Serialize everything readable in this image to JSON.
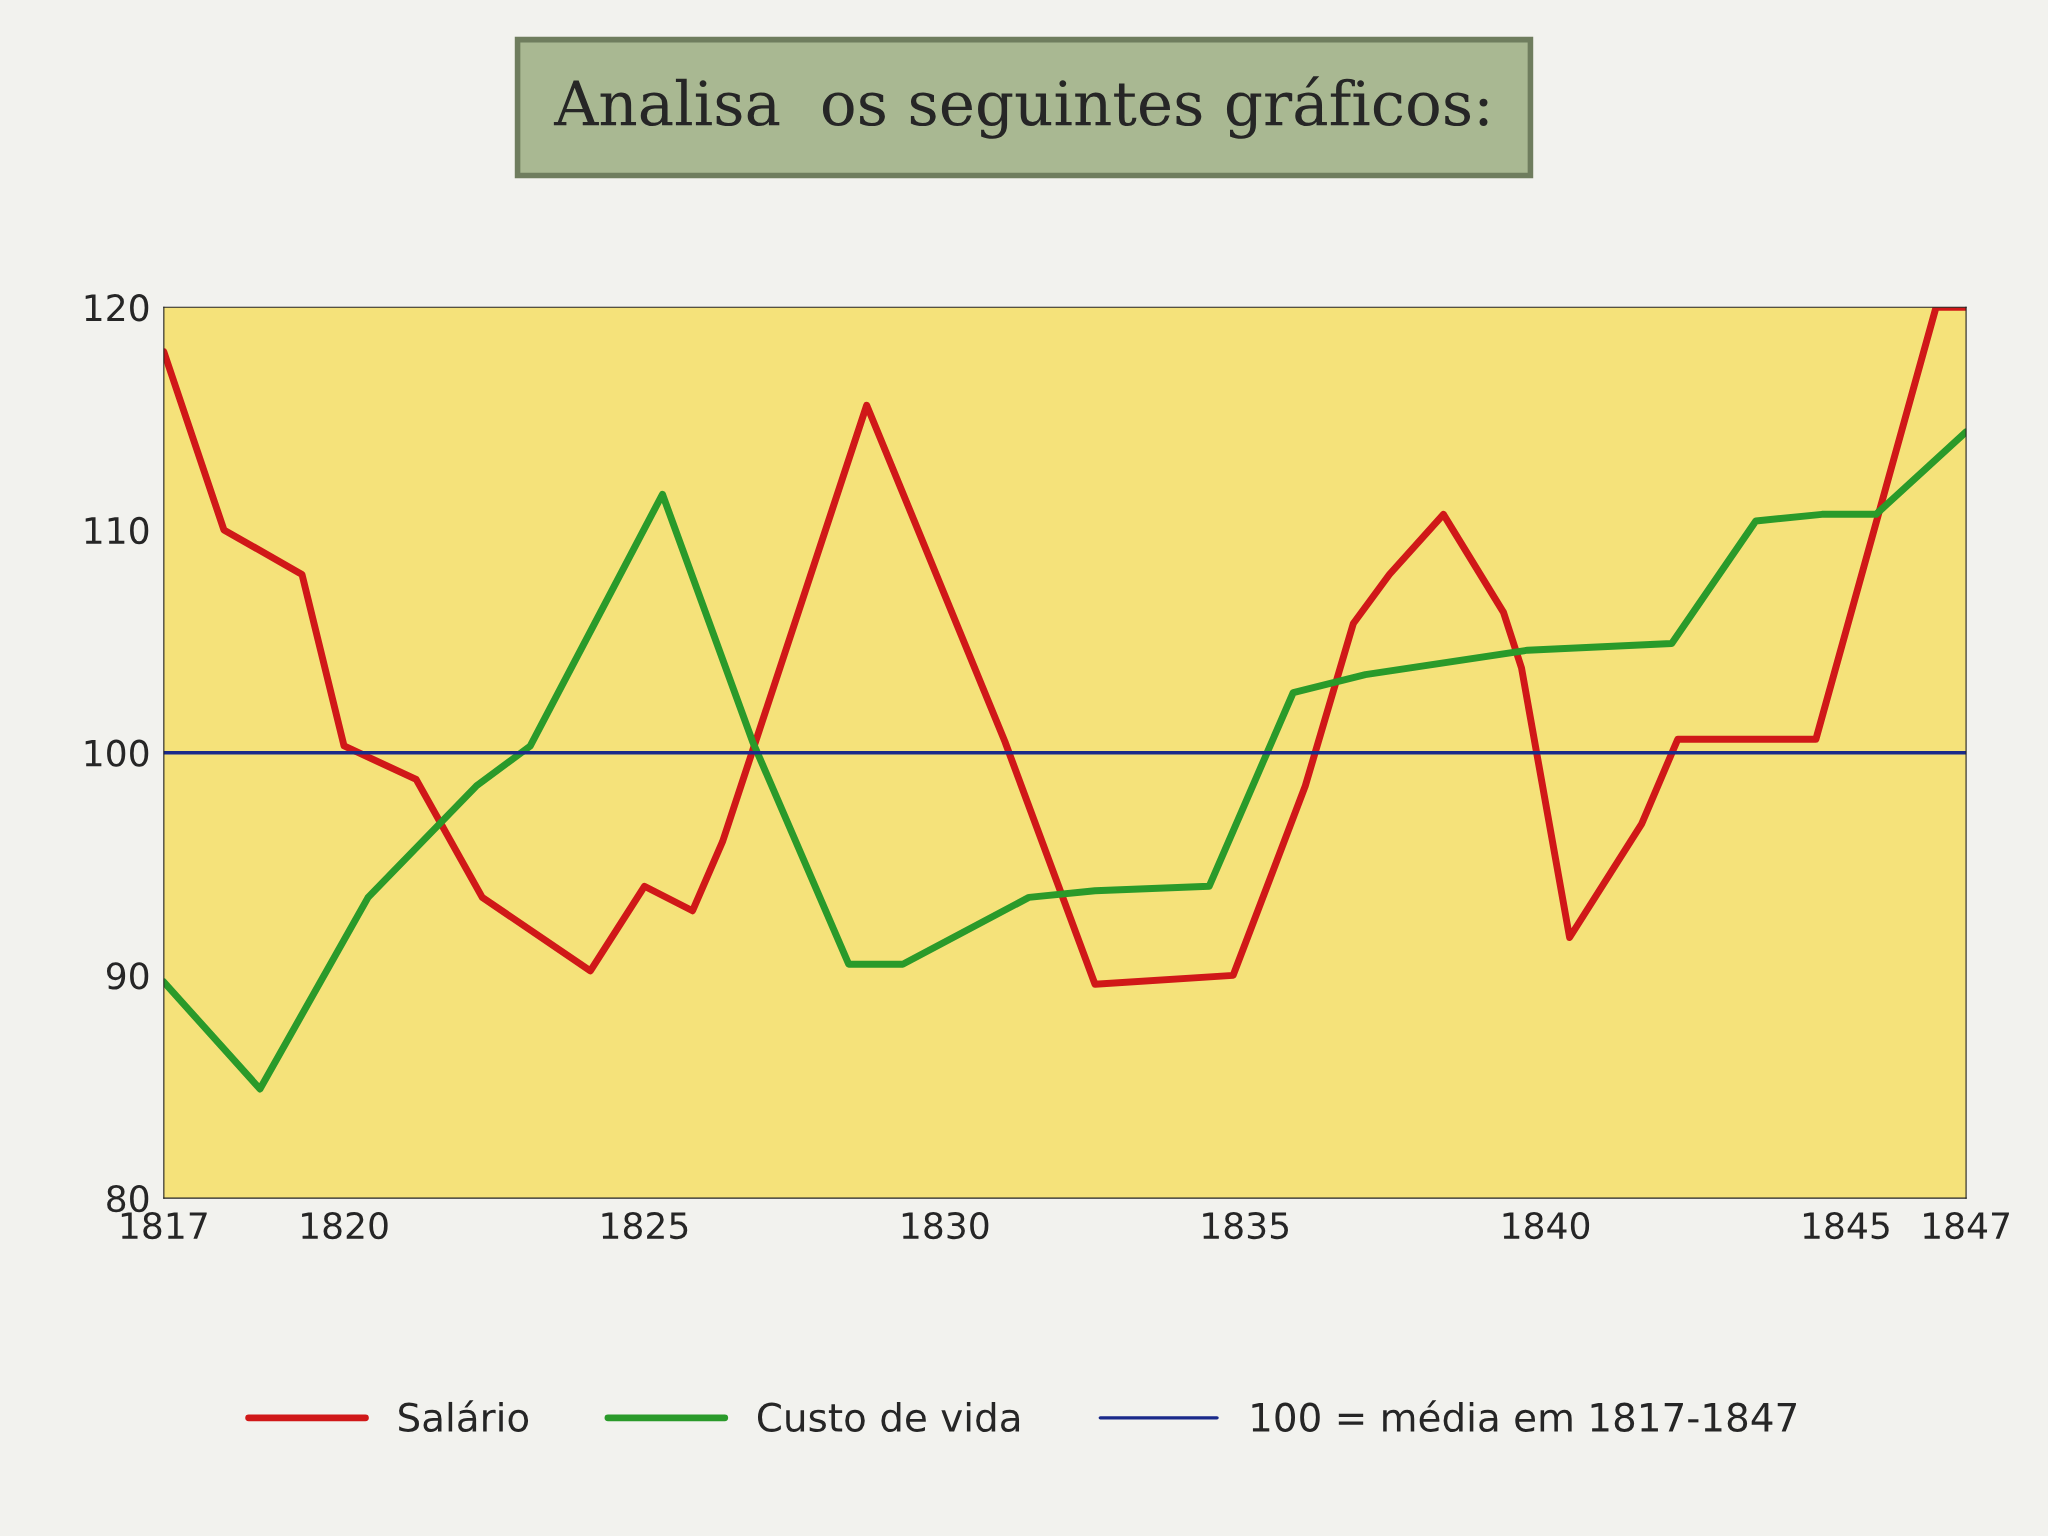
{
  "chart_data": {
    "type": "line",
    "title": "Analisa  os seguintes gráficos:",
    "xlim": [
      1817,
      1847
    ],
    "xticks": [
      1817,
      1820,
      1825,
      1830,
      1835,
      1840,
      1845,
      1847
    ],
    "ylim": [
      80,
      120
    ],
    "yticks": [
      80,
      90,
      100,
      110,
      120
    ],
    "grid": false,
    "legend": "bottom",
    "marker": "none",
    "line_style": "solid",
    "series": [
      {
        "name": "Salário",
        "color": "#d01818",
        "x": [
          1817,
          1818,
          1819.3,
          1820,
          1821.2,
          1822.3,
          1824.1,
          1825,
          1825.8,
          1826.3,
          1828.7,
          1831,
          1832.5,
          1834.8,
          1836,
          1836.8,
          1837.4,
          1838.3,
          1839.3,
          1839.6,
          1840.4,
          1841.6,
          1842.2,
          1844.5,
          1846.5,
          1847
        ],
        "values": [
          118,
          110,
          108,
          100.3,
          98.8,
          93.5,
          90.2,
          94,
          92.9,
          96,
          115.6,
          100.5,
          89.6,
          90,
          98.5,
          105.8,
          108,
          110.7,
          106.3,
          103.8,
          91.7,
          96.8,
          100.6,
          100.6,
          120,
          120
        ]
      },
      {
        "name": "Custo de vida",
        "color": "#2a9a2a",
        "x": [
          1817,
          1818.6,
          1820.4,
          1822.2,
          1823.1,
          1825.3,
          1826.8,
          1828.4,
          1829.3,
          1831.4,
          1832.5,
          1834.4,
          1835.8,
          1837,
          1839.7,
          1842.1,
          1843.5,
          1844.6,
          1845.5,
          1847
        ],
        "values": [
          89.7,
          84.9,
          93.5,
          98.5,
          100.3,
          111.6,
          100.5,
          90.5,
          90.5,
          93.5,
          93.8,
          94,
          102.7,
          103.5,
          104.6,
          104.9,
          110.4,
          110.7,
          110.7,
          114.4
        ]
      }
    ],
    "ref_lines": [
      {
        "axis": "y",
        "value": 100,
        "label": "100 = média em 1817-1847",
        "color": "#1a2a8a",
        "line_style": "solid"
      }
    ]
  }
}
